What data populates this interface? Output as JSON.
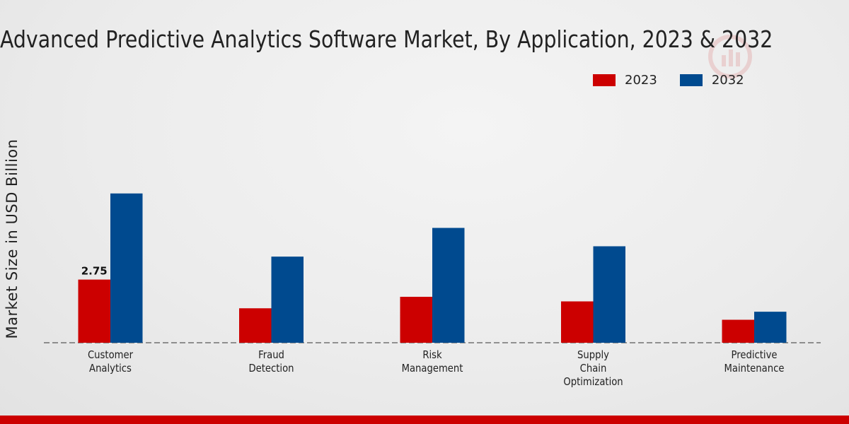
{
  "chart_data": {
    "type": "bar",
    "title": "Advanced Predictive Analytics Software Market, By Application, 2023 & 2032",
    "xlabel": "",
    "ylabel": "Market Size in USD Billion",
    "categories": [
      [
        "Customer",
        "Analytics"
      ],
      [
        "Fraud",
        "Detection"
      ],
      [
        "Risk",
        "Management"
      ],
      [
        "Supply",
        "Chain",
        "Optimization"
      ],
      [
        "Predictive",
        "Maintenance"
      ]
    ],
    "series": [
      {
        "name": "2023",
        "color": "#cc0000",
        "values": [
          2.75,
          1.5,
          2.0,
          1.8,
          1.0
        ]
      },
      {
        "name": "2032",
        "color": "#004a8f",
        "values": [
          6.5,
          3.75,
          5.0,
          4.2,
          1.35
        ]
      }
    ],
    "data_labels": [
      {
        "series": 0,
        "index": 0,
        "text": "2.75"
      }
    ],
    "ylim": [
      0,
      10
    ],
    "grid": false,
    "legend_position": "top-right"
  }
}
